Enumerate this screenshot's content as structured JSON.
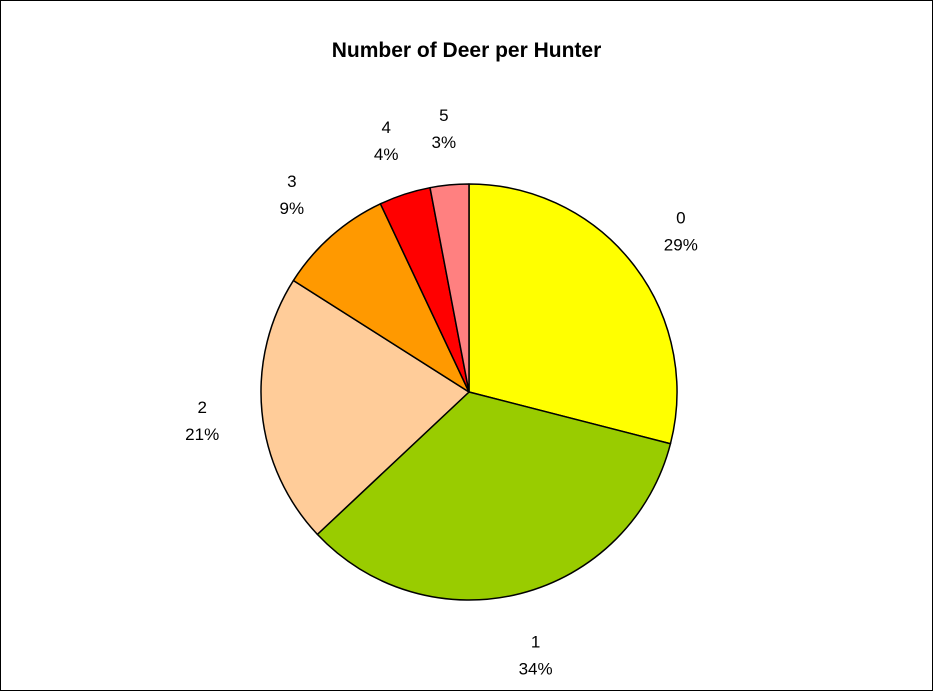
{
  "chart_data": {
    "type": "pie",
    "title": "Number of Deer per Hunter",
    "categories": [
      "0",
      "1",
      "2",
      "3",
      "4",
      "5"
    ],
    "values": [
      29,
      34,
      21,
      9,
      4,
      3
    ],
    "percent_labels": [
      "29%",
      "34%",
      "21%",
      "9%",
      "4%",
      "3%"
    ],
    "colors": [
      "#FFFF00",
      "#99CC00",
      "#FFCC99",
      "#FF9900",
      "#FF0000",
      "#FF8080"
    ],
    "legend": "none",
    "start_angle": "12 o'clock",
    "direction": "clockwise"
  }
}
